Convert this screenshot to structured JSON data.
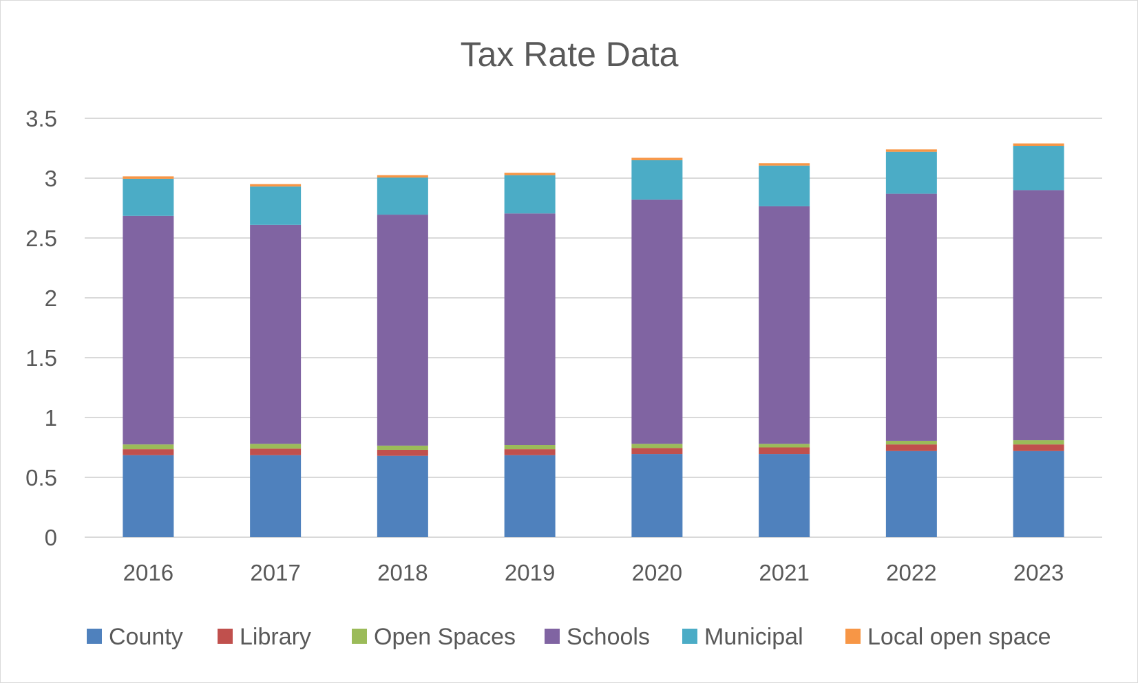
{
  "chart_data": {
    "type": "bar",
    "stacked": true,
    "title": "Tax Rate Data",
    "xlabel": "",
    "ylabel": "",
    "ylim": [
      0,
      3.5
    ],
    "yticks": [
      "0",
      "0.5",
      "1",
      "1.5",
      "2",
      "2.5",
      "3",
      "3.5"
    ],
    "grid": true,
    "legend_position": "bottom",
    "categories": [
      "2016",
      "2017",
      "2018",
      "2019",
      "2020",
      "2021",
      "2022",
      "2023"
    ],
    "series": [
      {
        "name": "County",
        "color": "#4f81bd",
        "values": [
          0.685,
          0.685,
          0.68,
          0.685,
          0.695,
          0.695,
          0.72,
          0.72
        ]
      },
      {
        "name": "Library",
        "color": "#c0504d",
        "values": [
          0.05,
          0.055,
          0.05,
          0.05,
          0.05,
          0.055,
          0.055,
          0.055
        ]
      },
      {
        "name": "Open Spaces",
        "color": "#9bbb59",
        "values": [
          0.04,
          0.04,
          0.035,
          0.035,
          0.035,
          0.03,
          0.03,
          0.035
        ]
      },
      {
        "name": "Schools",
        "color": "#8064a2",
        "values": [
          1.91,
          1.83,
          1.93,
          1.935,
          2.04,
          1.985,
          2.065,
          2.09
        ]
      },
      {
        "name": "Municipal",
        "color": "#4bacc6",
        "values": [
          0.31,
          0.32,
          0.31,
          0.32,
          0.33,
          0.34,
          0.35,
          0.37
        ]
      },
      {
        "name": "Local open space",
        "color": "#f79646",
        "values": [
          0.02,
          0.02,
          0.02,
          0.02,
          0.02,
          0.02,
          0.02,
          0.02
        ]
      }
    ]
  }
}
